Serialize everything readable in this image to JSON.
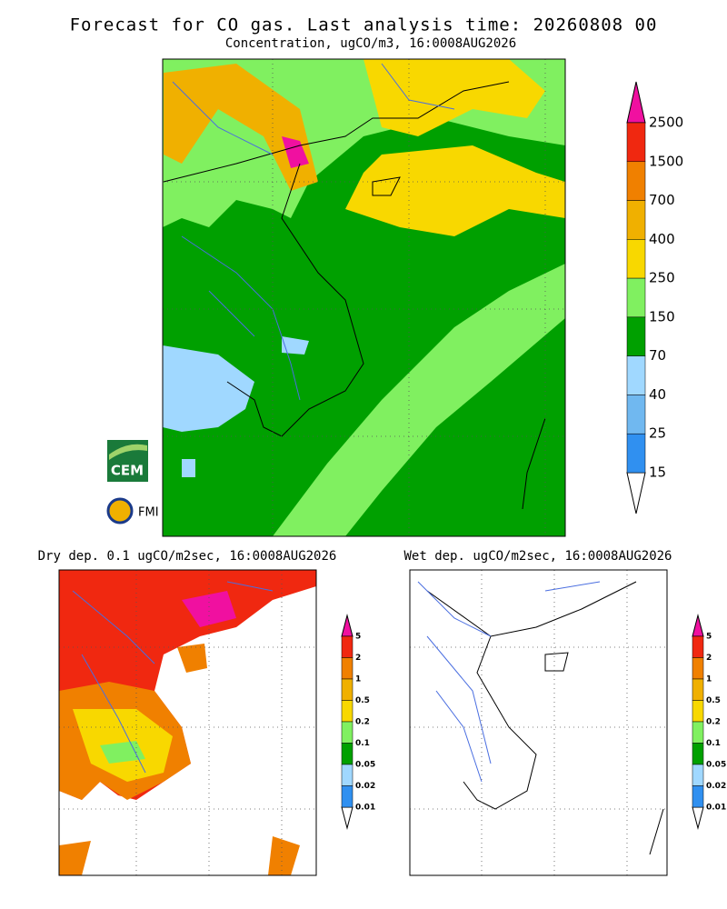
{
  "title": "Forecast for CO gas. Last analysis time: 20260808 00",
  "logos": [
    "CEM",
    "FMI"
  ],
  "panels": [
    {
      "subtitle": "Concentration, ugCO/m3, 16:0008AUG2026",
      "legend": {
        "labels": [
          "2500",
          "1500",
          "700",
          "400",
          "250",
          "150",
          "70",
          "40",
          "25",
          "15"
        ],
        "colors": [
          "#f02810",
          "#f08000",
          "#f0b000",
          "#f8d800",
          "#80f060",
          "#00a000",
          "#a0d8ff",
          "#70b8f0",
          "#3090f0"
        ],
        "top_color": "#f010a0",
        "bottom_color": "#ffffff"
      }
    },
    {
      "subtitle": "Dry dep. 0.1 ugCO/m2sec, 16:0008AUG2026",
      "legend": {
        "labels": [
          "5",
          "2",
          "1",
          "0.5",
          "0.2",
          "0.1",
          "0.05",
          "0.02",
          "0.01"
        ],
        "colors": [
          "#f02810",
          "#f08000",
          "#f0b000",
          "#f8d800",
          "#80f060",
          "#00a000",
          "#a0d8ff",
          "#3090f0"
        ],
        "top_color": "#f010a0",
        "bottom_color": "#ffffff"
      }
    },
    {
      "subtitle": "Wet dep. ugCO/m2sec, 16:0008AUG2026",
      "legend": {
        "labels": [
          "5",
          "2",
          "1",
          "0.5",
          "0.2",
          "0.1",
          "0.05",
          "0.02",
          "0.01"
        ],
        "colors": [
          "#f02810",
          "#f08000",
          "#f0b000",
          "#f8d800",
          "#80f060",
          "#00a000",
          "#a0d8ff",
          "#3090f0"
        ],
        "top_color": "#f010a0",
        "bottom_color": "#ffffff"
      }
    }
  ]
}
